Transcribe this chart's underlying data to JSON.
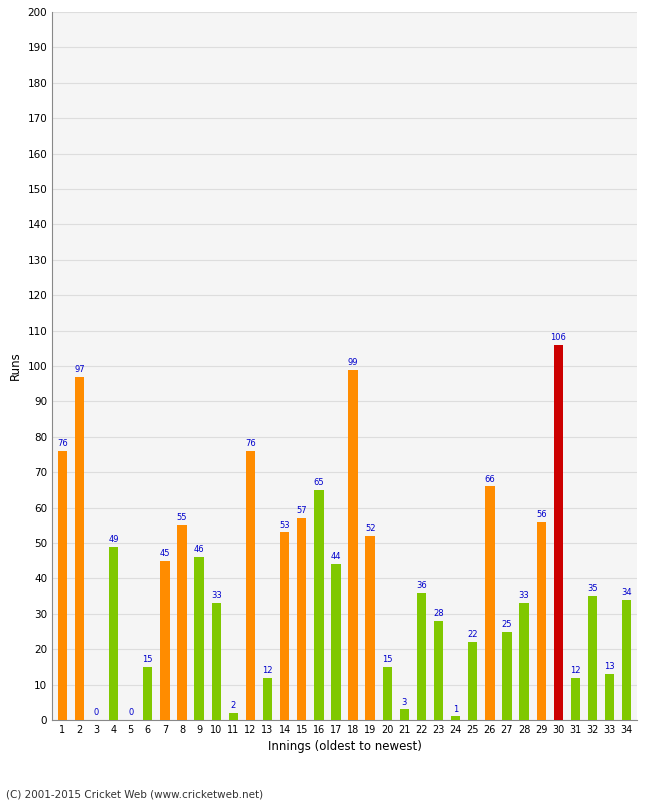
{
  "innings": [
    1,
    2,
    3,
    4,
    5,
    6,
    7,
    8,
    9,
    10,
    11,
    12,
    13,
    14,
    15,
    16,
    17,
    18,
    19,
    20,
    21,
    22,
    23,
    24,
    25,
    26,
    27,
    28,
    29,
    30,
    31,
    32,
    33,
    34
  ],
  "values": [
    76,
    97,
    0,
    49,
    0,
    15,
    45,
    55,
    46,
    33,
    2,
    76,
    12,
    53,
    57,
    65,
    44,
    99,
    52,
    15,
    3,
    36,
    28,
    1,
    22,
    66,
    25,
    33,
    56,
    106,
    12,
    35,
    13,
    34
  ],
  "colors": [
    "#ff8c00",
    "#ff8c00",
    "#80c800",
    "#80c800",
    "#80c800",
    "#80c800",
    "#ff8c00",
    "#ff8c00",
    "#80c800",
    "#80c800",
    "#80c800",
    "#ff8c00",
    "#80c800",
    "#ff8c00",
    "#ff8c00",
    "#80c800",
    "#80c800",
    "#ff8c00",
    "#ff8c00",
    "#80c800",
    "#80c800",
    "#80c800",
    "#80c800",
    "#80c800",
    "#80c800",
    "#ff8c00",
    "#80c800",
    "#80c800",
    "#ff8c00",
    "#cc0000",
    "#80c800",
    "#80c800",
    "#80c800",
    "#80c800"
  ],
  "xlabel": "Innings (oldest to newest)",
  "ylabel": "Runs",
  "ylim": [
    0,
    200
  ],
  "yticks": [
    0,
    10,
    20,
    30,
    40,
    50,
    60,
    70,
    80,
    90,
    100,
    110,
    120,
    130,
    140,
    150,
    160,
    170,
    180,
    190,
    200
  ],
  "bg_color": "#ffffff",
  "plot_bg_color": "#f5f5f5",
  "label_color": "#0000cc",
  "footer": "(C) 2001-2015 Cricket Web (www.cricketweb.net)",
  "grid_color": "#dddddd"
}
